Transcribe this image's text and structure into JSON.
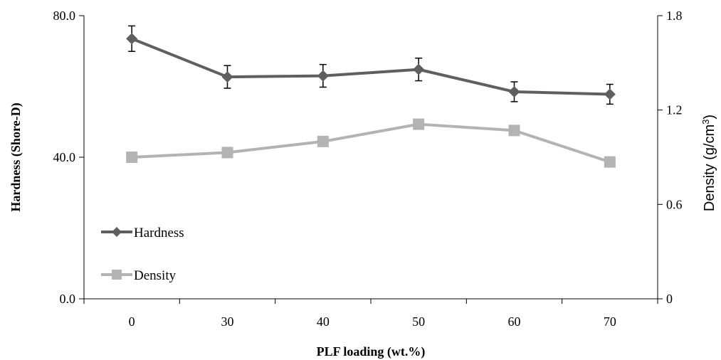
{
  "chart_data": {
    "type": "line",
    "xlabel": "PLF loading (wt.%)",
    "categories": [
      "0",
      "30",
      "40",
      "50",
      "60",
      "70"
    ],
    "y_left": {
      "label": "Hardness (Shore-D)",
      "lim": [
        0,
        80
      ],
      "ticks": [
        "0.0",
        "40.0",
        "80.0"
      ],
      "tick_values": [
        0,
        40,
        80
      ]
    },
    "y_right": {
      "label_base": "Density (g/cm",
      "label_sup": "3",
      "label_end": ")",
      "lim": [
        0,
        1.8
      ],
      "ticks": [
        "0",
        "0.6",
        "1.2",
        "1.8"
      ],
      "tick_values": [
        0,
        0.6,
        1.2,
        1.8
      ]
    },
    "series": [
      {
        "name": "Hardness",
        "axis": "left",
        "marker": "diamond",
        "color": "#5f5f5f",
        "values": [
          73.5,
          62.7,
          63.0,
          64.8,
          58.5,
          57.8
        ],
        "error": [
          3.6,
          3.2,
          3.2,
          3.2,
          2.8,
          2.8
        ]
      },
      {
        "name": "Density",
        "axis": "right",
        "marker": "square",
        "color": "#b3b3b3",
        "values": [
          0.9,
          0.93,
          1.0,
          1.11,
          1.07,
          0.87
        ]
      }
    ],
    "grid": false,
    "legend_position": "bottom-left"
  }
}
